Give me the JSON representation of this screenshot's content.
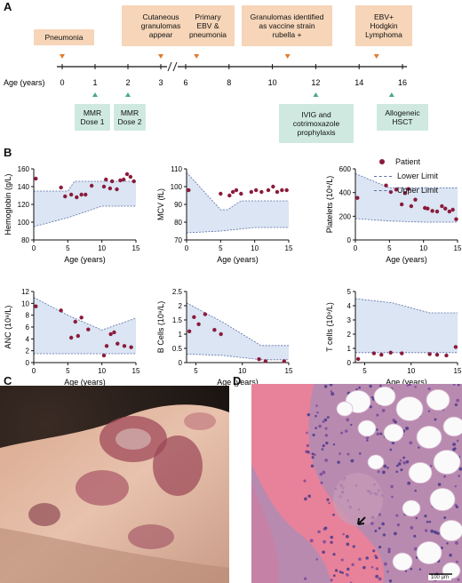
{
  "panels": {
    "a": "A",
    "b": "B",
    "c": "C",
    "d": "D"
  },
  "timeline": {
    "axis_label": "Age (years)",
    "ticks": [
      {
        "label": "0",
        "age": 0
      },
      {
        "label": "1",
        "age": 1
      },
      {
        "label": "2",
        "age": 2
      },
      {
        "label": "3",
        "age": 3
      },
      {
        "label": "6",
        "age": 6
      },
      {
        "label": "8",
        "age": 8
      },
      {
        "label": "10",
        "age": 10
      },
      {
        "label": "12",
        "age": 12
      },
      {
        "label": "14",
        "age": 14
      },
      {
        "label": "16",
        "age": 16
      }
    ],
    "events_above": [
      {
        "lines": [
          "Pneumonia"
        ],
        "age": 0
      },
      {
        "lines": [
          "Cutaneous",
          "granulomas",
          "appear"
        ],
        "age": 3
      },
      {
        "lines": [
          "Primary",
          "EBV &",
          "pneumonia"
        ],
        "age": 6.5
      },
      {
        "lines": [
          "Granulomas identified",
          "as vaccine strain",
          "rubella +"
        ],
        "age": 10.7
      },
      {
        "lines": [
          "EBV+",
          "Hodgkin",
          "Lymphoma"
        ],
        "age": 14.8
      }
    ],
    "events_below": [
      {
        "lines": [
          "MMR",
          "Dose 1"
        ],
        "age": 1
      },
      {
        "lines": [
          "MMR",
          "Dose 2"
        ],
        "age": 2
      },
      {
        "lines": [
          "IVIG and",
          "cotrimoxazole",
          "prophylaxis"
        ],
        "age": 12
      },
      {
        "lines": [
          "Allogeneic",
          "HSCT"
        ],
        "age": 15.5
      }
    ],
    "colors": {
      "above": "#f6d5b8",
      "below": "#cfe9e1",
      "above_arrow": "#e07b2c",
      "below_arrow": "#4aa88c"
    }
  },
  "legend": {
    "patient": "Patient",
    "lower": "Lower Limit",
    "upper": "Upper Limit"
  },
  "colors": {
    "point": "#8b1a3a",
    "band": "#dbe5f3",
    "limit_line": "#5a6fa8"
  },
  "chart_data": [
    {
      "type": "scatter",
      "ylabel": "Hemoglobin (g/L)",
      "xlabel": "Age (years)",
      "xlim": [
        0,
        15
      ],
      "ylim": [
        80,
        160
      ],
      "xticks": [
        0,
        5,
        10,
        15
      ],
      "yticks": [
        80,
        100,
        120,
        140,
        160
      ],
      "lower": [
        [
          0,
          95
        ],
        [
          5,
          105
        ],
        [
          10,
          118
        ],
        [
          15,
          118
        ]
      ],
      "upper": [
        [
          0,
          135
        ],
        [
          5,
          135
        ],
        [
          6,
          146
        ],
        [
          10,
          146
        ],
        [
          15,
          146
        ]
      ],
      "points": [
        [
          0.3,
          149
        ],
        [
          4,
          139
        ],
        [
          4.6,
          129
        ],
        [
          5.5,
          131
        ],
        [
          6.3,
          128
        ],
        [
          7,
          131
        ],
        [
          7.6,
          131
        ],
        [
          8.5,
          141
        ],
        [
          10.3,
          140
        ],
        [
          10.6,
          148
        ],
        [
          11.2,
          138
        ],
        [
          11.5,
          146
        ],
        [
          12.2,
          137
        ],
        [
          13.2,
          148
        ],
        [
          13.7,
          154
        ],
        [
          14.2,
          151
        ],
        [
          14.7,
          146
        ],
        [
          12.7,
          147
        ]
      ]
    },
    {
      "type": "scatter",
      "ylabel": "MCV (fL)",
      "xlabel": "Age (years)",
      "xlim": [
        0,
        15
      ],
      "ylim": [
        70,
        110
      ],
      "xticks": [
        0,
        5,
        10,
        15
      ],
      "yticks": [
        70,
        80,
        90,
        100,
        110
      ],
      "lower": [
        [
          0,
          74
        ],
        [
          5,
          75
        ],
        [
          10,
          77
        ],
        [
          15,
          77
        ]
      ],
      "upper": [
        [
          0,
          108
        ],
        [
          5,
          87
        ],
        [
          6,
          87
        ],
        [
          8,
          92
        ],
        [
          15,
          92
        ]
      ],
      "points": [
        [
          0.3,
          98
        ],
        [
          5,
          96
        ],
        [
          6.3,
          95
        ],
        [
          6.8,
          97
        ],
        [
          7.3,
          98
        ],
        [
          8,
          96
        ],
        [
          9.5,
          97
        ],
        [
          10.2,
          98
        ],
        [
          11,
          97
        ],
        [
          12,
          98
        ],
        [
          12.7,
          100
        ],
        [
          13.3,
          97
        ],
        [
          14,
          98
        ],
        [
          14.7,
          98
        ]
      ]
    },
    {
      "type": "scatter",
      "ylabel": "Platelets (10⁹/L)",
      "xlabel": "Age (years)",
      "xlim": [
        0,
        15
      ],
      "ylim": [
        0,
        600
      ],
      "xticks": [
        0,
        5,
        10,
        15
      ],
      "yticks": [
        0,
        200,
        400,
        600
      ],
      "lower": [
        [
          0,
          180
        ],
        [
          5,
          160
        ],
        [
          10,
          150
        ],
        [
          15,
          150
        ]
      ],
      "upper": [
        [
          0,
          560
        ],
        [
          5,
          440
        ],
        [
          10,
          440
        ],
        [
          15,
          440
        ]
      ],
      "points": [
        [
          0.3,
          355
        ],
        [
          4.5,
          460
        ],
        [
          5.2,
          405
        ],
        [
          6,
          425
        ],
        [
          6.8,
          300
        ],
        [
          7.3,
          395
        ],
        [
          7.8,
          430
        ],
        [
          8.2,
          285
        ],
        [
          8.8,
          340
        ],
        [
          10.2,
          270
        ],
        [
          10.6,
          265
        ],
        [
          11.3,
          245
        ],
        [
          12,
          240
        ],
        [
          12.7,
          285
        ],
        [
          13.2,
          265
        ],
        [
          13.8,
          240
        ],
        [
          14.3,
          255
        ],
        [
          14.8,
          175
        ]
      ]
    },
    {
      "type": "scatter",
      "ylabel": "ANC (10⁹/L)",
      "xlabel": "Age (years)",
      "xlim": [
        0,
        15
      ],
      "ylim": [
        0,
        12
      ],
      "xticks": [
        0,
        5,
        10,
        15
      ],
      "yticks": [
        0,
        2,
        4,
        6,
        8,
        10,
        12
      ],
      "lower": [
        [
          0,
          1.5
        ],
        [
          5,
          1.5
        ],
        [
          10,
          1.5
        ],
        [
          15,
          1.5
        ]
      ],
      "upper": [
        [
          0,
          11
        ],
        [
          5,
          8
        ],
        [
          10,
          5.5
        ],
        [
          15,
          7.5
        ]
      ],
      "points": [
        [
          0.3,
          9.5
        ],
        [
          4,
          8.8
        ],
        [
          5.5,
          4.2
        ],
        [
          6.1,
          6.9
        ],
        [
          6.5,
          4.5
        ],
        [
          7,
          7.6
        ],
        [
          8,
          5.6
        ],
        [
          10.3,
          1.2
        ],
        [
          10.7,
          2.8
        ],
        [
          11.3,
          4.8
        ],
        [
          11.8,
          5.1
        ],
        [
          12.3,
          3.2
        ],
        [
          13.3,
          2.8
        ],
        [
          14.3,
          2.6
        ]
      ]
    },
    {
      "type": "scatter",
      "ylabel": "B Cells (10⁹/L)",
      "xlabel": "Age (years)",
      "xlim": [
        4,
        15
      ],
      "ylim": [
        0,
        2.5
      ],
      "xticks": [
        5,
        10,
        15
      ],
      "yticks": [
        0,
        0.5,
        1.0,
        1.5,
        2.0,
        2.5
      ],
      "lower": [
        [
          4,
          0.3
        ],
        [
          8,
          0.25
        ],
        [
          12,
          0.1
        ],
        [
          15,
          0.1
        ]
      ],
      "upper": [
        [
          4,
          2.1
        ],
        [
          8,
          1.4
        ],
        [
          12,
          0.6
        ],
        [
          15,
          0.6
        ]
      ],
      "points": [
        [
          4.3,
          1.1
        ],
        [
          4.8,
          1.6
        ],
        [
          5.3,
          1.35
        ],
        [
          6,
          1.7
        ],
        [
          7,
          1.15
        ],
        [
          7.7,
          1.0
        ],
        [
          11.8,
          0.12
        ],
        [
          12.5,
          0.05
        ],
        [
          14.5,
          0.05
        ]
      ]
    },
    {
      "type": "scatter",
      "ylabel": "T cells (10⁹/L)",
      "xlabel": "Age (years)",
      "xlim": [
        4,
        15
      ],
      "ylim": [
        0,
        5
      ],
      "xticks": [
        5,
        10,
        15
      ],
      "yticks": [
        0,
        1,
        2,
        3,
        4,
        5
      ],
      "lower": [
        [
          4,
          0.7
        ],
        [
          8,
          0.7
        ],
        [
          12,
          0.7
        ],
        [
          15,
          0.7
        ]
      ],
      "upper": [
        [
          4,
          4.5
        ],
        [
          8,
          4.2
        ],
        [
          12,
          3.5
        ],
        [
          15,
          3.5
        ]
      ],
      "points": [
        [
          4.3,
          0.25
        ],
        [
          6,
          0.65
        ],
        [
          6.8,
          0.55
        ],
        [
          7.8,
          0.7
        ],
        [
          9,
          0.65
        ],
        [
          12,
          0.6
        ],
        [
          12.8,
          0.55
        ],
        [
          13.8,
          0.5
        ],
        [
          14.8,
          1.1
        ]
      ]
    }
  ],
  "micrograph": {
    "scale_label": "100 µm"
  }
}
